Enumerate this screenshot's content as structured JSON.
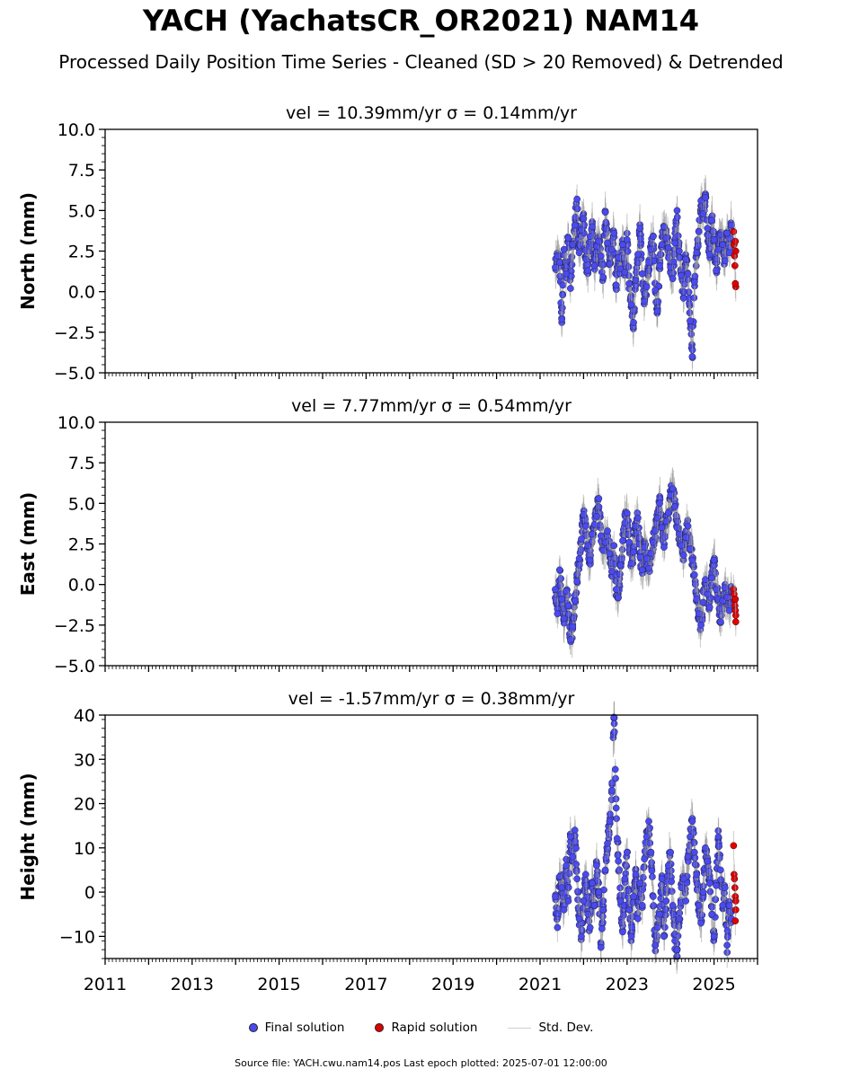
{
  "title": "YACH (YachatsCR_OR2021) NAM14",
  "subtitle": "Processed Daily Position Time Series - Cleaned (SD > 20 Removed) & Detrended",
  "footer": "Source file: YACH.cwu.nam14.pos  Last epoch plotted: 2025-07-01 12:00:00",
  "legend": {
    "final": "Final solution",
    "rapid": "Rapid solution",
    "std": "Std. Dev."
  },
  "colors": {
    "final": "#4a4af0",
    "rapid": "#e00000",
    "std": "#bdbdbd"
  },
  "chart_data": [
    {
      "type": "scatter",
      "title": "vel = 10.39mm/yr   σ = 0.14mm/yr",
      "ylabel": "North (mm)",
      "xlim": [
        2011,
        2026
      ],
      "ylim": [
        -5,
        10
      ],
      "yticks": [
        -5,
        -2.5,
        0,
        2.5,
        5,
        7.5,
        10
      ],
      "ytick_labels": [
        "−5.0",
        "−2.5",
        "0.0",
        "2.5",
        "5.0",
        "7.5",
        "10.0"
      ],
      "data_span": [
        2021.3,
        2025.5
      ],
      "series": [
        {
          "name": "Final solution",
          "x": [
            2021.35,
            2021.4,
            2021.45,
            2021.5,
            2021.55,
            2021.6,
            2021.65,
            2021.7,
            2021.75,
            2021.8,
            2021.85,
            2021.9,
            2021.95,
            2022.0,
            2022.05,
            2022.1,
            2022.15,
            2022.2,
            2022.25,
            2022.3,
            2022.35,
            2022.4,
            2022.45,
            2022.5,
            2022.55,
            2022.6,
            2022.65,
            2022.7,
            2022.75,
            2022.8,
            2022.85,
            2022.9,
            2022.95,
            2023.0,
            2023.05,
            2023.1,
            2023.15,
            2023.2,
            2023.25,
            2023.3,
            2023.35,
            2023.4,
            2023.45,
            2023.5,
            2023.55,
            2023.6,
            2023.65,
            2023.7,
            2023.75,
            2023.8,
            2023.85,
            2023.9,
            2023.95,
            2024.0,
            2024.05,
            2024.1,
            2024.15,
            2024.2,
            2024.25,
            2024.3,
            2024.35,
            2024.4,
            2024.45,
            2024.5,
            2024.55,
            2024.6,
            2024.65,
            2024.7,
            2024.75,
            2024.8,
            2024.85,
            2024.9,
            2024.95,
            2025.0,
            2025.05,
            2025.1,
            2025.15,
            2025.2,
            2025.25,
            2025.3,
            2025.35,
            2025.4
          ],
          "y": [
            1.5,
            2.2,
            1.8,
            -1.7,
            2.6,
            1.1,
            3.3,
            0.2,
            2.9,
            4.1,
            5.7,
            2.4,
            3.8,
            4.5,
            2.0,
            1.3,
            3.4,
            4.0,
            1.6,
            2.8,
            3.1,
            2.2,
            0.9,
            4.9,
            3.0,
            1.7,
            2.6,
            3.6,
            0.4,
            2.1,
            1.4,
            2.9,
            1.2,
            3.2,
            0.5,
            -0.8,
            -1.9,
            0.7,
            2.3,
            3.9,
            1.1,
            -0.6,
            0.3,
            1.8,
            2.6,
            3.4,
            0.1,
            -1.2,
            1.6,
            2.9,
            4.0,
            3.3,
            2.7,
            1.5,
            0.8,
            3.0,
            5.0,
            2.5,
            1.0,
            -0.4,
            2.0,
            1.1,
            -1.8,
            -4.0,
            0.6,
            2.4,
            3.7,
            5.6,
            4.8,
            5.8,
            3.9,
            2.3,
            4.4,
            3.2,
            1.3,
            2.6,
            3.5,
            2.9,
            1.9,
            3.6,
            2.4,
            4.1
          ]
        },
        {
          "name": "Rapid solution",
          "x": [
            2025.45,
            2025.46,
            2025.47,
            2025.48,
            2025.49,
            2025.5,
            2025.5,
            2025.49
          ],
          "y": [
            3.7,
            2.9,
            2.2,
            1.6,
            3.1,
            2.5,
            0.3,
            0.5
          ]
        }
      ]
    },
    {
      "type": "scatter",
      "title": "vel = 7.77mm/yr   σ = 0.54mm/yr",
      "ylabel": "East (mm)",
      "xlim": [
        2011,
        2026
      ],
      "ylim": [
        -5,
        10
      ],
      "yticks": [
        -5,
        -2.5,
        0,
        2.5,
        5,
        7.5,
        10
      ],
      "ytick_labels": [
        "−5.0",
        "−2.5",
        "0.0",
        "2.5",
        "5.0",
        "7.5",
        "10.0"
      ],
      "data_span": [
        2021.3,
        2025.5
      ],
      "series": [
        {
          "name": "Final solution",
          "x": [
            2021.35,
            2021.4,
            2021.45,
            2021.5,
            2021.55,
            2021.6,
            2021.65,
            2021.7,
            2021.75,
            2021.8,
            2021.85,
            2021.9,
            2021.95,
            2022.0,
            2022.05,
            2022.1,
            2022.15,
            2022.2,
            2022.25,
            2022.3,
            2022.35,
            2022.4,
            2022.45,
            2022.5,
            2022.55,
            2022.6,
            2022.65,
            2022.7,
            2022.75,
            2022.8,
            2022.85,
            2022.9,
            2022.95,
            2023.0,
            2023.05,
            2023.1,
            2023.15,
            2023.2,
            2023.25,
            2023.3,
            2023.35,
            2023.4,
            2023.45,
            2023.5,
            2023.55,
            2023.6,
            2023.65,
            2023.7,
            2023.75,
            2023.8,
            2023.85,
            2023.9,
            2023.95,
            2024.0,
            2024.05,
            2024.1,
            2024.15,
            2024.2,
            2024.25,
            2024.3,
            2024.35,
            2024.4,
            2024.45,
            2024.5,
            2024.55,
            2024.6,
            2024.65,
            2024.7,
            2024.75,
            2024.8,
            2024.85,
            2024.9,
            2024.95,
            2025.0,
            2025.05,
            2025.1,
            2025.15,
            2025.2,
            2025.25,
            2025.3,
            2025.35,
            2025.4
          ],
          "y": [
            -0.3,
            -1.8,
            0.9,
            -0.9,
            -2.1,
            -0.4,
            -1.3,
            -3.4,
            -2.6,
            -1.0,
            0.2,
            1.6,
            2.8,
            4.3,
            3.6,
            2.4,
            1.5,
            3.1,
            3.7,
            4.2,
            5.3,
            3.0,
            2.1,
            2.6,
            3.3,
            1.9,
            0.8,
            2.4,
            -0.3,
            -0.8,
            1.2,
            2.7,
            3.8,
            4.4,
            2.6,
            1.3,
            2.0,
            3.6,
            4.1,
            1.7,
            0.9,
            2.3,
            1.6,
            1.0,
            1.9,
            2.6,
            3.3,
            4.1,
            5.0,
            3.5,
            2.3,
            3.9,
            4.4,
            5.5,
            5.9,
            4.8,
            3.5,
            3.1,
            2.4,
            1.8,
            2.9,
            3.6,
            2.2,
            1.5,
            0.6,
            -0.9,
            -1.8,
            -2.5,
            -1.1,
            0.3,
            -0.6,
            -1.4,
            0.4,
            1.5,
            -0.3,
            -0.9,
            -2.3,
            -1.0,
            -0.2,
            -0.8,
            -1.6,
            -0.4
          ]
        },
        {
          "name": "Rapid solution",
          "x": [
            2025.45,
            2025.46,
            2025.47,
            2025.48,
            2025.49,
            2025.5,
            2025.5,
            2025.49
          ],
          "y": [
            -0.3,
            -0.6,
            -1.0,
            -1.3,
            -1.6,
            -1.9,
            -2.3,
            -0.9
          ]
        }
      ]
    },
    {
      "type": "scatter",
      "title": "vel = -1.57mm/yr   σ = 0.38mm/yr",
      "ylabel": "Height (mm)",
      "xlim": [
        2011,
        2026
      ],
      "ylim": [
        -15,
        40
      ],
      "yticks": [
        -10,
        0,
        10,
        20,
        30,
        40
      ],
      "ytick_labels": [
        "−10",
        "0",
        "10",
        "20",
        "30",
        "40"
      ],
      "xticks": [
        2011,
        2013,
        2015,
        2017,
        2019,
        2021,
        2023,
        2025
      ],
      "xtick_labels": [
        "2011",
        "2013",
        "2015",
        "2017",
        "2019",
        "2021",
        "2023",
        "2025"
      ],
      "data_span": [
        2021.3,
        2025.5
      ],
      "series": [
        {
          "name": "Final solution",
          "x": [
            2021.35,
            2021.4,
            2021.45,
            2021.5,
            2021.55,
            2021.6,
            2021.65,
            2021.7,
            2021.75,
            2021.8,
            2021.85,
            2021.9,
            2021.95,
            2022.0,
            2022.05,
            2022.1,
            2022.15,
            2022.2,
            2022.25,
            2022.3,
            2022.35,
            2022.4,
            2022.45,
            2022.5,
            2022.55,
            2022.6,
            2022.65,
            2022.7,
            2022.75,
            2022.8,
            2022.85,
            2022.9,
            2022.95,
            2023.0,
            2023.05,
            2023.1,
            2023.15,
            2023.2,
            2023.25,
            2023.3,
            2023.35,
            2023.4,
            2023.45,
            2023.5,
            2023.55,
            2023.6,
            2023.65,
            2023.7,
            2023.75,
            2023.8,
            2023.85,
            2023.9,
            2023.95,
            2024.0,
            2024.05,
            2024.1,
            2024.15,
            2024.2,
            2024.25,
            2024.3,
            2024.35,
            2024.4,
            2024.45,
            2024.5,
            2024.55,
            2024.6,
            2024.65,
            2024.7,
            2024.75,
            2024.8,
            2024.85,
            2024.9,
            2024.95,
            2025.0,
            2025.05,
            2025.1,
            2025.15,
            2025.2,
            2025.25,
            2025.3,
            2025.35,
            2025.4
          ],
          "y": [
            -1.0,
            -8.0,
            3.5,
            1.0,
            -4.0,
            6.0,
            -2.0,
            12.5,
            8.0,
            14.0,
            3.0,
            -6.0,
            -10.0,
            -2.0,
            4.0,
            -5.0,
            -8.0,
            2.0,
            -3.0,
            6.0,
            0.0,
            -12.5,
            -4.0,
            5.0,
            11.0,
            16.0,
            23.0,
            39.5,
            19.0,
            7.0,
            -2.0,
            -9.0,
            3.0,
            9.0,
            -4.0,
            -10.0,
            -1.0,
            4.0,
            -6.0,
            2.0,
            -3.0,
            7.5,
            12.5,
            16.0,
            9.0,
            -1.0,
            -12.0,
            -8.0,
            -5.0,
            3.0,
            -10.0,
            -2.0,
            6.0,
            9.0,
            -3.0,
            -11.0,
            -13.0,
            -6.0,
            1.0,
            3.0,
            -2.0,
            8.0,
            12.5,
            16.0,
            9.0,
            4.0,
            -3.0,
            -7.0,
            0.0,
            10.0,
            7.0,
            2.0,
            -5.0,
            -10.0,
            1.5,
            12.5,
            5.0,
            -3.0,
            1.0,
            -12.0,
            -3.0,
            -6.0
          ]
        },
        {
          "name": "Rapid solution",
          "x": [
            2025.45,
            2025.46,
            2025.47,
            2025.48,
            2025.49,
            2025.5,
            2025.5,
            2025.49
          ],
          "y": [
            10.5,
            4.0,
            3.0,
            1.0,
            -1.0,
            -2.0,
            -4.0,
            -6.5
          ]
        }
      ]
    }
  ]
}
